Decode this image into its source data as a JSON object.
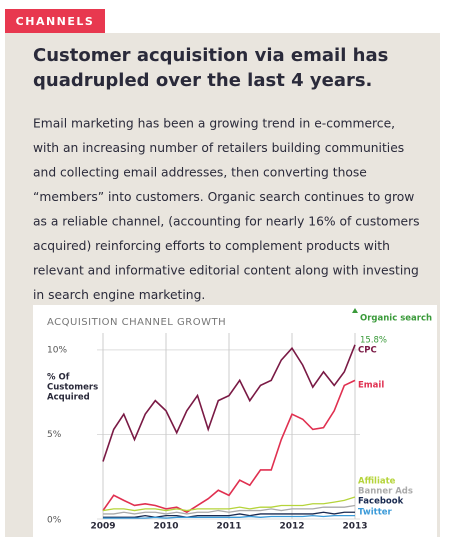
{
  "tag": "CHANNELS",
  "title_lines": [
    "Customer acquisition via email has",
    "quadrupled over the last 4 years."
  ],
  "body_lines": [
    "Email marketing has been a growing trend in e-commerce,",
    "with an increasing number of retailers building communities",
    "and collecting email addresses, then converting those",
    "“members” into customers. Organic search continues to grow",
    "as a reliable channel, (accounting for nearly 16% of customers",
    "acquired) reinforcing efforts to complement products with",
    "relevant and informative editorial content along with investing",
    "in search engine marketing."
  ],
  "chart_data": {
    "type": "line",
    "title": "ACQUISITION CHANNEL GROWTH",
    "y_label_lines": [
      "% Of",
      "Customers",
      "Acquired"
    ],
    "annotation": {
      "name": "Organic search",
      "label": "15.8%",
      "color": "#3a9a3a"
    },
    "x": [
      2009,
      2009.17,
      2009.33,
      2009.5,
      2009.67,
      2009.83,
      2010,
      2010.17,
      2010.33,
      2010.5,
      2010.67,
      2010.83,
      2011,
      2011.17,
      2011.33,
      2011.5,
      2011.67,
      2011.83,
      2012,
      2012.17,
      2012.33,
      2012.5,
      2012.67,
      2012.83,
      2013
    ],
    "xlim": [
      2009,
      2013
    ],
    "xticks": [
      2009,
      2010,
      2011,
      2012,
      2013
    ],
    "ylim": [
      0,
      11
    ],
    "yticks": [
      {
        "value": 0,
        "label": "0%"
      },
      {
        "value": 5,
        "label": "5%"
      },
      {
        "value": 10,
        "label": "10%"
      }
    ],
    "grid": true,
    "series": [
      {
        "name": "CPC",
        "color": "#7a1a45",
        "values": [
          3.4,
          5.3,
          6.2,
          4.7,
          6.2,
          7.0,
          6.4,
          5.1,
          6.4,
          7.3,
          5.3,
          7.0,
          7.3,
          8.2,
          7.0,
          7.9,
          8.2,
          9.4,
          10.1,
          9.1,
          7.8,
          8.7,
          7.9,
          8.7,
          10.3
        ]
      },
      {
        "name": "Email",
        "color": "#e03050",
        "values": [
          0.5,
          1.4,
          1.1,
          0.8,
          0.9,
          0.8,
          0.6,
          0.7,
          0.4,
          0.8,
          1.2,
          1.7,
          1.4,
          2.3,
          2.0,
          2.9,
          2.9,
          4.7,
          6.2,
          5.9,
          5.3,
          5.4,
          6.4,
          7.9,
          8.2
        ]
      },
      {
        "name": "Affiliate",
        "color": "#b5d43a",
        "values": [
          0.5,
          0.6,
          0.6,
          0.5,
          0.6,
          0.6,
          0.5,
          0.6,
          0.5,
          0.6,
          0.6,
          0.6,
          0.6,
          0.7,
          0.6,
          0.7,
          0.7,
          0.8,
          0.8,
          0.8,
          0.9,
          0.9,
          1.0,
          1.1,
          1.3
        ]
      },
      {
        "name": "Banner Ads",
        "color": "#aaaaaa",
        "values": [
          0.3,
          0.3,
          0.4,
          0.3,
          0.4,
          0.4,
          0.3,
          0.4,
          0.3,
          0.4,
          0.4,
          0.5,
          0.4,
          0.5,
          0.5,
          0.5,
          0.6,
          0.5,
          0.6,
          0.6,
          0.6,
          0.7,
          0.7,
          0.7,
          0.8
        ]
      },
      {
        "name": "Facebook",
        "color": "#1a2a50",
        "values": [
          0.1,
          0.1,
          0.1,
          0.1,
          0.2,
          0.1,
          0.2,
          0.2,
          0.1,
          0.2,
          0.2,
          0.2,
          0.2,
          0.3,
          0.2,
          0.3,
          0.3,
          0.3,
          0.3,
          0.3,
          0.3,
          0.4,
          0.3,
          0.4,
          0.4
        ]
      },
      {
        "name": "Twitter",
        "color": "#3a9ad8",
        "values": [
          0.05,
          0.05,
          0.05,
          0.05,
          0.05,
          0.1,
          0.05,
          0.1,
          0.1,
          0.1,
          0.1,
          0.1,
          0.1,
          0.1,
          0.15,
          0.1,
          0.15,
          0.15,
          0.15,
          0.15,
          0.2,
          0.15,
          0.2,
          0.2,
          0.2
        ]
      }
    ]
  }
}
